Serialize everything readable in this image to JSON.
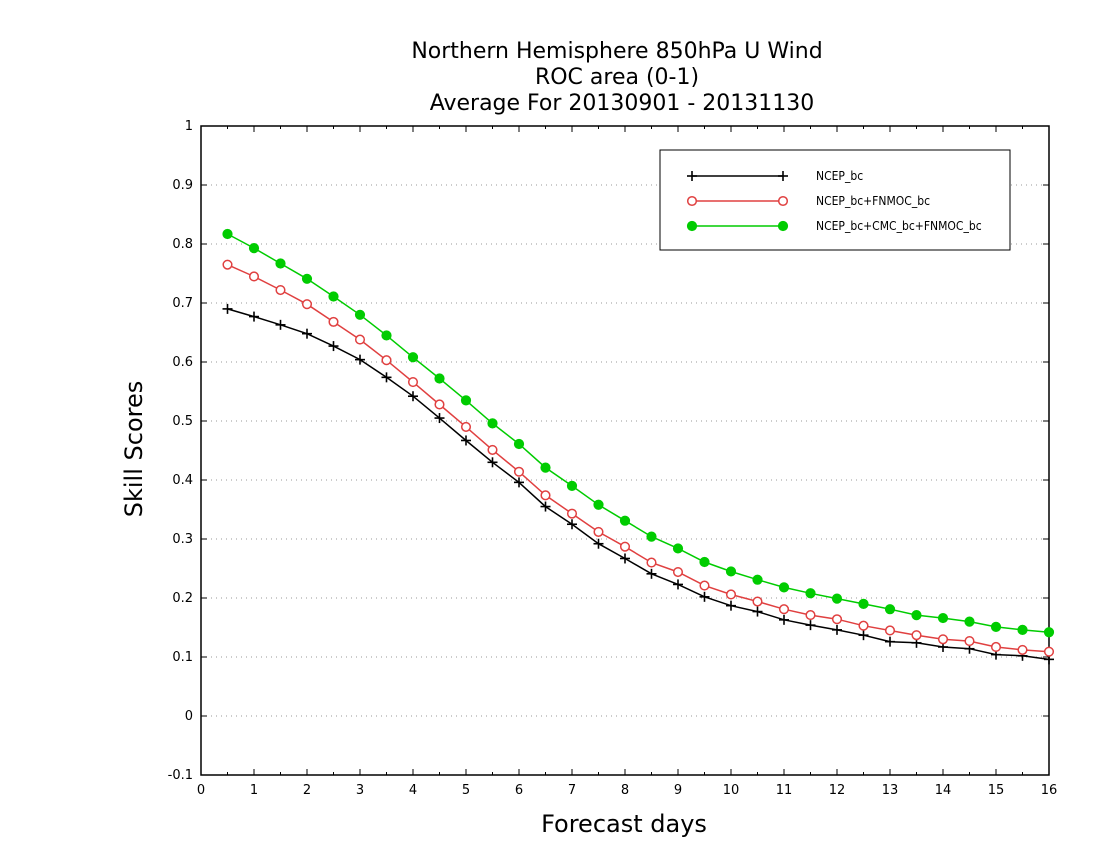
{
  "chart_data": {
    "type": "line",
    "title_lines": [
      "Northern Hemisphere 850hPa U Wind",
      "ROC area (0-1)",
      "Average For 20130901 - 20131130"
    ],
    "xlabel": "Forecast days",
    "ylabel": "Skill Scores",
    "xlim": [
      0,
      16
    ],
    "ylim": [
      -0.1,
      1
    ],
    "x_ticks": [
      "0",
      "1",
      "2",
      "3",
      "4",
      "5",
      "6",
      "7",
      "8",
      "9",
      "10",
      "11",
      "12",
      "13",
      "14",
      "15",
      "16"
    ],
    "y_ticks": [
      "-0.1",
      "0",
      "0.1",
      "0.2",
      "0.3",
      "0.4",
      "0.5",
      "0.6",
      "0.7",
      "0.8",
      "0.9",
      "1"
    ],
    "grid": "horizontal dotted",
    "legend_position": "top-right",
    "x": [
      0.5,
      1,
      1.5,
      2,
      2.5,
      3,
      3.5,
      4,
      4.5,
      5,
      5.5,
      6,
      6.5,
      7,
      7.5,
      8,
      8.5,
      9,
      9.5,
      10,
      10.5,
      11,
      11.5,
      12,
      12.5,
      13,
      13.5,
      14,
      14.5,
      15,
      15.5,
      16
    ],
    "series": [
      {
        "name": "NCEP_bc",
        "color": "#000000",
        "marker": "plus",
        "values": [
          0.69,
          0.677,
          0.663,
          0.648,
          0.627,
          0.604,
          0.574,
          0.542,
          0.505,
          0.467,
          0.43,
          0.396,
          0.355,
          0.325,
          0.292,
          0.267,
          0.241,
          0.223,
          0.202,
          0.187,
          0.177,
          0.163,
          0.154,
          0.146,
          0.137,
          0.126,
          0.124,
          0.117,
          0.114,
          0.104,
          0.102,
          0.096
        ]
      },
      {
        "name": "NCEP_bc+FNMOC_bc",
        "color": "#e04040",
        "marker": "open-circle",
        "values": [
          0.765,
          0.745,
          0.722,
          0.698,
          0.668,
          0.638,
          0.603,
          0.566,
          0.528,
          0.49,
          0.451,
          0.414,
          0.374,
          0.343,
          0.312,
          0.287,
          0.26,
          0.244,
          0.221,
          0.206,
          0.194,
          0.181,
          0.171,
          0.164,
          0.153,
          0.145,
          0.137,
          0.13,
          0.127,
          0.117,
          0.112,
          0.109
        ]
      },
      {
        "name": "NCEP_bc+CMC_bc+FNMOC_bc",
        "color": "#00cc00",
        "marker": "filled-circle",
        "values": [
          0.817,
          0.793,
          0.767,
          0.741,
          0.711,
          0.68,
          0.645,
          0.608,
          0.572,
          0.535,
          0.496,
          0.461,
          0.421,
          0.39,
          0.358,
          0.331,
          0.304,
          0.284,
          0.261,
          0.245,
          0.231,
          0.218,
          0.208,
          0.199,
          0.19,
          0.181,
          0.171,
          0.166,
          0.16,
          0.151,
          0.146,
          0.142
        ]
      }
    ]
  }
}
